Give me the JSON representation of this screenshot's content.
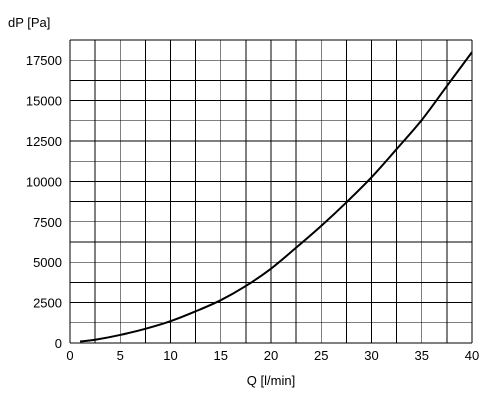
{
  "chart_data": {
    "type": "line",
    "xlabel": "Q [l/min]",
    "ylabel": "dP [Pa]",
    "xlim": [
      0,
      40
    ],
    "ylim": [
      0,
      18750
    ],
    "x_ticks": [
      0,
      5,
      10,
      15,
      20,
      25,
      30,
      35,
      40
    ],
    "y_ticks": [
      0,
      2500,
      5000,
      7500,
      10000,
      12500,
      15000,
      17500
    ],
    "grid": true,
    "series": [
      {
        "x": [
          1,
          2.5,
          5,
          7.5,
          10,
          12.5,
          15,
          17.5,
          20,
          22.5,
          25,
          27.5,
          30,
          32.5,
          35,
          37.5,
          40
        ],
        "y": [
          90,
          200,
          500,
          880,
          1350,
          1960,
          2650,
          3530,
          4600,
          5900,
          7250,
          8700,
          10250,
          12000,
          13800,
          15900,
          18000
        ]
      }
    ]
  }
}
